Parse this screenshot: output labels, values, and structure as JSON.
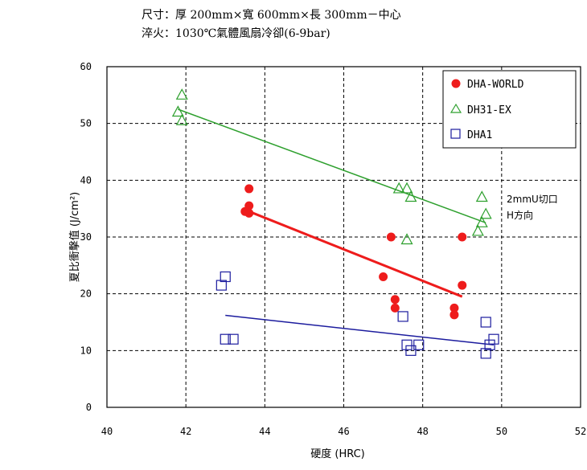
{
  "header": {
    "line1": "尺寸：厚 200mm×寬 600mm×長 300mm－中心",
    "line2": "淬火：1030℃氣體風扇冷卻(6-9bar)"
  },
  "annotation": {
    "line1": "2mmU切口",
    "line2": "H方向"
  },
  "chart_data": {
    "type": "scatter",
    "xlabel": "硬度 (HRC)",
    "ylabel": "夏比衝擊值 (J/cm²)",
    "xlim": [
      40,
      52
    ],
    "ylim": [
      0,
      60
    ],
    "xticks": [
      40,
      42,
      44,
      46,
      48,
      50,
      52
    ],
    "yticks": [
      0,
      10,
      20,
      30,
      40,
      50,
      60
    ],
    "grid": true,
    "legend_position": "top-right",
    "series": [
      {
        "name": "DHA-WORLD",
        "marker": "filled-circle",
        "color": "#ee1c1c",
        "points": [
          [
            43.6,
            38.5
          ],
          [
            43.6,
            35.5
          ],
          [
            43.5,
            34.5
          ],
          [
            43.6,
            34.2
          ],
          [
            47.2,
            30.0
          ],
          [
            47.0,
            23.0
          ],
          [
            47.3,
            19.0
          ],
          [
            47.3,
            17.5
          ],
          [
            48.8,
            17.5
          ],
          [
            48.8,
            16.3
          ],
          [
            49.0,
            30.0
          ],
          [
            49.0,
            21.5
          ]
        ],
        "trendline": [
          [
            43.6,
            34.5
          ],
          [
            49.0,
            19.5
          ]
        ]
      },
      {
        "name": "DH31-EX",
        "marker": "open-triangle",
        "color": "#2ea02e",
        "points": [
          [
            41.9,
            55.0
          ],
          [
            41.8,
            52.0
          ],
          [
            41.9,
            50.5
          ],
          [
            47.4,
            38.5
          ],
          [
            47.6,
            38.5
          ],
          [
            47.7,
            37.0
          ],
          [
            47.6,
            29.5
          ],
          [
            49.5,
            37.0
          ],
          [
            49.6,
            34.0
          ],
          [
            49.5,
            32.5
          ],
          [
            49.4,
            31.0
          ]
        ],
        "trendline": [
          [
            41.8,
            52.5
          ],
          [
            49.6,
            32.5
          ]
        ]
      },
      {
        "name": "DHA1",
        "marker": "open-square",
        "color": "#1c1c9e",
        "points": [
          [
            42.9,
            21.5
          ],
          [
            43.0,
            23.0
          ],
          [
            43.0,
            12.0
          ],
          [
            43.2,
            12.0
          ],
          [
            47.5,
            16.0
          ],
          [
            47.6,
            11.0
          ],
          [
            47.7,
            10.0
          ],
          [
            47.9,
            11.0
          ],
          [
            49.6,
            15.0
          ],
          [
            49.6,
            9.5
          ],
          [
            49.8,
            12.0
          ],
          [
            49.7,
            11.0
          ]
        ],
        "trendline": [
          [
            43.0,
            16.2
          ],
          [
            49.8,
            11.0
          ]
        ]
      }
    ]
  }
}
